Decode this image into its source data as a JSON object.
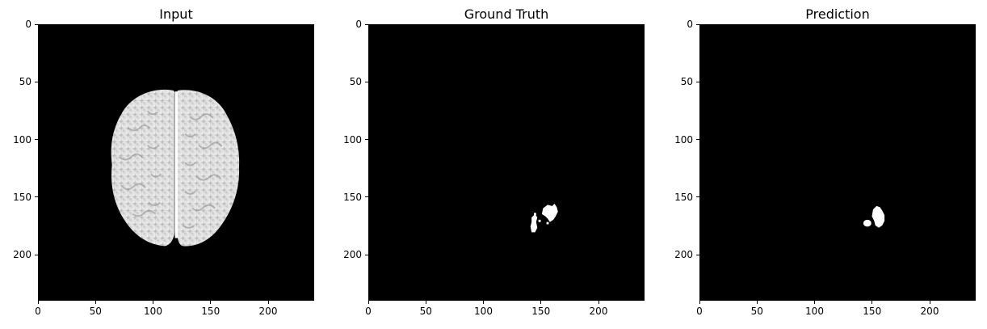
{
  "panels": [
    {
      "title": "Input",
      "content": "brain-scan",
      "colors": {
        "background": "#000000",
        "foreground": "#e6e6e6"
      }
    },
    {
      "title": "Ground Truth",
      "content": "tumor-mask",
      "colors": {
        "background": "#000000",
        "foreground": "#ffffff"
      }
    },
    {
      "title": "Prediction",
      "content": "tumor-mask",
      "colors": {
        "background": "#000000",
        "foreground": "#ffffff"
      }
    }
  ],
  "axes": {
    "x_ticks": [
      "0",
      "50",
      "100",
      "150",
      "200"
    ],
    "y_ticks": [
      "0",
      "50",
      "100",
      "150",
      "200"
    ],
    "range": [
      0,
      240
    ]
  }
}
